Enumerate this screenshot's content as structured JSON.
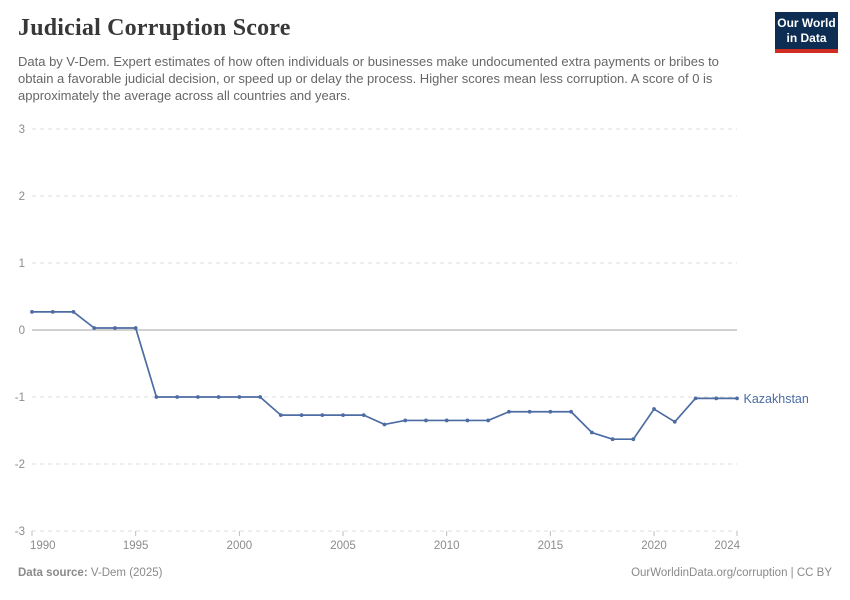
{
  "header": {
    "title": "Judicial Corruption Score",
    "subtitle": "Data by V-Dem. Expert estimates of how often individuals or businesses make undocumented extra payments or bribes to obtain a favorable judicial decision, or speed up or delay the process. Higher scores mean less corruption. A score of 0 is approximately the average across all countries and years.",
    "logo": {
      "line1": "Our World",
      "line2": "in Data",
      "bg_color": "#0d2d52",
      "accent_color": "#cf2d22"
    }
  },
  "chart_data": {
    "type": "line",
    "title": "Judicial Corruption Score",
    "xlabel": "",
    "ylabel": "",
    "xlim": [
      1990,
      2024
    ],
    "ylim": [
      -3,
      3
    ],
    "grid": "horizontal-dashed",
    "zero_line": true,
    "x_ticks": [
      1990,
      1995,
      2000,
      2005,
      2010,
      2015,
      2020,
      2024
    ],
    "y_ticks": [
      3,
      2,
      1,
      0,
      -1,
      -2,
      -3
    ],
    "series": [
      {
        "name": "Kazakhstan",
        "color": "#4d6ca3",
        "x": [
          1990,
          1991,
          1992,
          1993,
          1994,
          1995,
          1996,
          1997,
          1998,
          1999,
          2000,
          2001,
          2002,
          2003,
          2004,
          2005,
          2006,
          2007,
          2008,
          2009,
          2010,
          2011,
          2012,
          2013,
          2014,
          2015,
          2016,
          2017,
          2018,
          2019,
          2020,
          2021,
          2022,
          2023,
          2024
        ],
        "values": [
          0.27,
          0.27,
          0.27,
          0.03,
          0.03,
          0.03,
          -1.0,
          -1.0,
          -1.0,
          -1.0,
          -1.0,
          -1.0,
          -1.27,
          -1.27,
          -1.27,
          -1.27,
          -1.27,
          -1.41,
          -1.35,
          -1.35,
          -1.35,
          -1.35,
          -1.35,
          -1.22,
          -1.22,
          -1.22,
          -1.22,
          -1.53,
          -1.63,
          -1.63,
          -1.18,
          -1.37,
          -1.02,
          -1.02,
          -1.02
        ]
      }
    ],
    "colors": {
      "gridline": "#dedede",
      "zero_line": "#a3a3a3",
      "tick": "#bdbdbd",
      "axis_text": "#8c8c8c"
    }
  },
  "footer": {
    "source_label": "Data source:",
    "source_value": " V-Dem (2025)",
    "credit": "OurWorldinData.org/corruption | CC BY"
  }
}
